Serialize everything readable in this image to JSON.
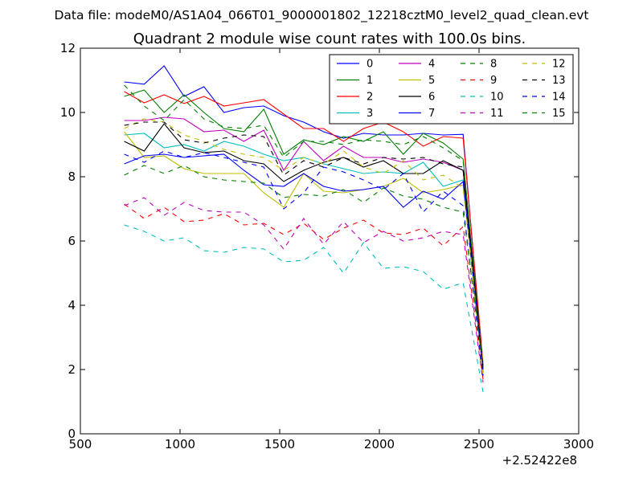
{
  "header": {
    "suptitle": "Data file: modeM0/AS1A04_066T01_9000001802_12218cztM0_level2_quad_clean.evt"
  },
  "chart_data": {
    "type": "line",
    "title": "Quadrant 2 module wise count rates with 100.0s bins.",
    "xlabel": "",
    "ylabel": "",
    "x_offset_label": "+2.52422e8",
    "xlim": [
      500,
      3000
    ],
    "ylim": [
      0,
      12
    ],
    "xticks": [
      500,
      1000,
      1500,
      2000,
      2500,
      3000
    ],
    "yticks": [
      0,
      2,
      4,
      6,
      8,
      10,
      12
    ],
    "grid": false,
    "legend_position": "top-right",
    "legend_columns": 4,
    "x": [
      720,
      820,
      920,
      1020,
      1120,
      1220,
      1320,
      1420,
      1520,
      1620,
      1720,
      1820,
      1920,
      2020,
      2120,
      2220,
      2320,
      2420,
      2520
    ],
    "series": [
      {
        "name": "0",
        "color": "#0000ff",
        "dash": "solid",
        "values": [
          10.95,
          10.88,
          11.45,
          10.5,
          10.8,
          10.0,
          10.15,
          10.2,
          9.9,
          9.7,
          9.4,
          9.2,
          9.35,
          9.3,
          9.3,
          9.35,
          9.3,
          9.32,
          2.0
        ]
      },
      {
        "name": "1",
        "color": "#008000",
        "dash": "solid",
        "values": [
          10.5,
          10.7,
          10.0,
          10.55,
          10.0,
          9.5,
          9.4,
          10.1,
          8.7,
          9.15,
          9.0,
          9.25,
          9.1,
          9.4,
          8.7,
          9.35,
          9.05,
          8.55,
          2.1
        ]
      },
      {
        "name": "2",
        "color": "#ff0000",
        "dash": "solid",
        "values": [
          10.65,
          10.3,
          10.55,
          10.28,
          10.5,
          10.2,
          10.3,
          10.4,
          9.95,
          9.5,
          9.5,
          9.1,
          9.5,
          9.7,
          9.4,
          8.95,
          9.25,
          9.2,
          2.2
        ]
      },
      {
        "name": "3",
        "color": "#00bfbf",
        "dash": "solid",
        "values": [
          9.3,
          9.35,
          8.9,
          9.0,
          8.8,
          9.1,
          8.95,
          8.7,
          8.5,
          8.6,
          8.4,
          8.25,
          8.1,
          8.15,
          8.1,
          8.45,
          7.7,
          7.9,
          2.0
        ]
      },
      {
        "name": "4",
        "color": "#bf00bf",
        "dash": "solid",
        "values": [
          9.75,
          9.75,
          9.85,
          9.8,
          9.4,
          9.45,
          9.1,
          9.45,
          8.2,
          9.1,
          8.5,
          8.95,
          8.6,
          8.6,
          8.45,
          8.55,
          8.45,
          8.2,
          1.9
        ]
      },
      {
        "name": "5",
        "color": "#bfbf00",
        "dash": "solid",
        "values": [
          9.4,
          8.6,
          8.65,
          8.25,
          8.1,
          8.1,
          8.1,
          7.5,
          7.05,
          8.1,
          7.55,
          7.5,
          7.6,
          7.7,
          7.95,
          7.5,
          7.6,
          7.75,
          1.8
        ]
      },
      {
        "name": "6",
        "color": "#000000",
        "dash": "solid",
        "values": [
          9.1,
          8.8,
          9.65,
          8.9,
          8.75,
          8.8,
          8.5,
          8.4,
          7.85,
          8.2,
          8.45,
          8.6,
          8.3,
          8.5,
          8.1,
          8.1,
          8.5,
          8.2,
          2.1
        ]
      },
      {
        "name": "7",
        "color": "#0000ff",
        "dash": "solid",
        "values": [
          8.4,
          8.65,
          8.7,
          8.6,
          8.65,
          8.7,
          8.2,
          7.75,
          7.7,
          8.1,
          7.7,
          7.55,
          7.6,
          7.7,
          7.05,
          7.55,
          7.3,
          7.85,
          2.0
        ]
      },
      {
        "name": "8",
        "color": "#008000",
        "dash": "dashed",
        "values": [
          10.85,
          10.2,
          9.75,
          10.4,
          9.8,
          9.55,
          9.5,
          9.6,
          8.6,
          9.1,
          9.1,
          9.0,
          9.15,
          9.1,
          9.0,
          9.25,
          8.9,
          8.5,
          2.0
        ]
      },
      {
        "name": "9",
        "color": "#ff0000",
        "dash": "dashed",
        "values": [
          7.15,
          6.7,
          7.05,
          6.6,
          6.65,
          6.85,
          6.5,
          6.55,
          6.2,
          6.55,
          6.05,
          6.4,
          6.65,
          6.25,
          6.2,
          6.4,
          5.85,
          6.45,
          1.7
        ]
      },
      {
        "name": "10",
        "color": "#00bfbf",
        "dash": "dashed",
        "values": [
          6.5,
          6.3,
          6.0,
          6.1,
          5.7,
          5.65,
          5.8,
          5.75,
          5.35,
          5.4,
          5.8,
          5.0,
          5.95,
          5.15,
          5.2,
          5.05,
          4.5,
          4.7,
          1.3
        ]
      },
      {
        "name": "11",
        "color": "#bf00bf",
        "dash": "dashed",
        "values": [
          7.1,
          7.35,
          6.8,
          7.2,
          6.95,
          6.9,
          6.9,
          6.5,
          5.75,
          6.7,
          5.9,
          6.6,
          5.95,
          6.3,
          6.0,
          6.1,
          6.3,
          6.2,
          1.6
        ]
      },
      {
        "name": "12",
        "color": "#bfbf00",
        "dash": "dashed",
        "values": [
          9.5,
          9.8,
          9.7,
          9.3,
          9.1,
          8.85,
          8.7,
          8.6,
          8.2,
          8.6,
          8.4,
          8.8,
          8.3,
          8.1,
          8.5,
          7.9,
          8.05,
          7.65,
          2.2
        ]
      },
      {
        "name": "13",
        "color": "#000000",
        "dash": "dashed",
        "values": [
          9.6,
          9.7,
          9.7,
          9.15,
          9.05,
          9.2,
          9.3,
          9.25,
          8.05,
          8.5,
          8.3,
          8.6,
          8.4,
          8.6,
          8.55,
          8.6,
          8.4,
          8.3,
          2.0
        ]
      },
      {
        "name": "14",
        "color": "#0000ff",
        "dash": "dashed",
        "values": [
          8.7,
          8.45,
          8.8,
          8.6,
          8.75,
          8.6,
          8.45,
          8.3,
          7.0,
          7.5,
          8.3,
          8.15,
          7.9,
          7.6,
          8.1,
          6.9,
          7.55,
          7.1,
          1.8
        ]
      },
      {
        "name": "15",
        "color": "#008000",
        "dash": "dashed",
        "values": [
          8.05,
          8.35,
          8.1,
          8.35,
          8.0,
          7.9,
          7.85,
          7.8,
          7.35,
          7.45,
          7.4,
          7.6,
          7.2,
          7.65,
          7.4,
          7.3,
          7.05,
          6.9,
          2.1
        ]
      }
    ]
  }
}
